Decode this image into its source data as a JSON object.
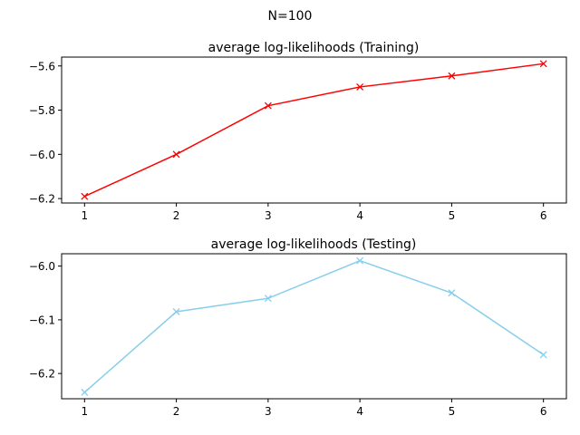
{
  "figure": {
    "suptitle": "N=100"
  },
  "chart_data": [
    {
      "type": "line",
      "title": "average log-likelihoods (Training)",
      "xlabel": "",
      "ylabel": "",
      "x": [
        1,
        2,
        3,
        4,
        5,
        6
      ],
      "series": [
        {
          "values": [
            -6.19,
            -6.0,
            -5.78,
            -5.695,
            -5.645,
            -5.59
          ],
          "color": "#ff0000",
          "marker": "x"
        }
      ],
      "xticks": [
        "1",
        "2",
        "3",
        "4",
        "5",
        "6"
      ],
      "yticks": [
        -6.2,
        -6.0,
        -5.8,
        -5.6
      ],
      "ytick_labels": [
        "−6.2",
        "−6.0",
        "−5.8",
        "−5.6"
      ],
      "xlim": [
        0.75,
        6.25
      ],
      "ylim": [
        -6.22,
        -5.56
      ],
      "grid": false,
      "legend": "none"
    },
    {
      "type": "line",
      "title": "average log-likelihoods (Testing)",
      "xlabel": "",
      "ylabel": "",
      "x": [
        1,
        2,
        3,
        4,
        5,
        6
      ],
      "series": [
        {
          "values": [
            -6.235,
            -6.085,
            -6.06,
            -5.99,
            -6.05,
            -6.165
          ],
          "color": "#87ceeb",
          "marker": "x"
        }
      ],
      "xticks": [
        "1",
        "2",
        "3",
        "4",
        "5",
        "6"
      ],
      "yticks": [
        -6.2,
        -6.1,
        -6.0
      ],
      "ytick_labels": [
        "−6.2",
        "−6.1",
        "−6.0"
      ],
      "xlim": [
        0.75,
        6.25
      ],
      "ylim": [
        -6.247,
        -5.977
      ],
      "grid": false,
      "legend": "none"
    }
  ]
}
